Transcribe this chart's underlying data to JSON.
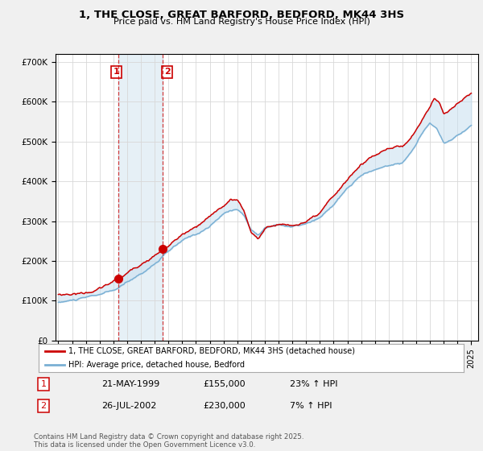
{
  "title": "1, THE CLOSE, GREAT BARFORD, BEDFORD, MK44 3HS",
  "subtitle": "Price paid vs. HM Land Registry's House Price Index (HPI)",
  "legend_line1": "1, THE CLOSE, GREAT BARFORD, BEDFORD, MK44 3HS (detached house)",
  "legend_line2": "HPI: Average price, detached house, Bedford",
  "transaction1_label": "1",
  "transaction1_date": "21-MAY-1999",
  "transaction1_price": "£155,000",
  "transaction1_hpi": "23% ↑ HPI",
  "transaction2_label": "2",
  "transaction2_date": "26-JUL-2002",
  "transaction2_price": "£230,000",
  "transaction2_hpi": "7% ↑ HPI",
  "footnote": "Contains HM Land Registry data © Crown copyright and database right 2025.\nThis data is licensed under the Open Government Licence v3.0.",
  "red_color": "#cc0000",
  "blue_color": "#7ab0d4",
  "blue_fill": "#c8dff0",
  "background_color": "#f0f0f0",
  "plot_bg_color": "#ffffff",
  "vline1_x": 1999.38,
  "vline2_x": 2002.56,
  "marker1_y": 155000,
  "marker2_y": 230000,
  "ylim": [
    0,
    720000
  ],
  "xlim": [
    1994.8,
    2025.5
  ]
}
